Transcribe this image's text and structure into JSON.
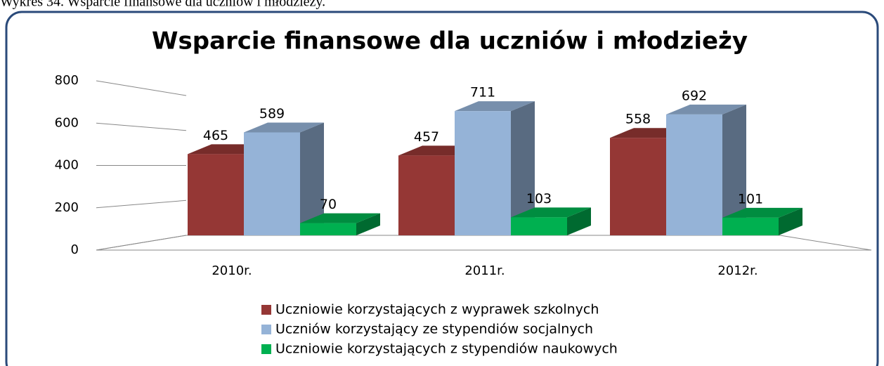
{
  "caption": "Wykres 34. Wsparcie finansowe dla uczniów i młodzieży.",
  "chart_data": {
    "type": "bar3d",
    "title": "Wsparcie finansowe dla uczniów i młodzieży",
    "categories": [
      "2010r.",
      "2011r.",
      "2012r."
    ],
    "series": [
      {
        "name": "Uczniowie korzystających z wyprawek szkolnych",
        "color": "#953735",
        "values": [
          465,
          457,
          558
        ]
      },
      {
        "name": "Uczniów korzystający ze stypendiów socjalnych",
        "color": "#95b3d7",
        "values": [
          589,
          711,
          692
        ]
      },
      {
        "name": "Uczniowie korzystających z stypendiów naukowych",
        "color": "#00b050",
        "values": [
          70,
          103,
          101
        ]
      }
    ],
    "ylim": [
      0,
      800
    ],
    "yticks": [
      0,
      200,
      400,
      600,
      800
    ],
    "grid": true,
    "legend": "bottom"
  }
}
